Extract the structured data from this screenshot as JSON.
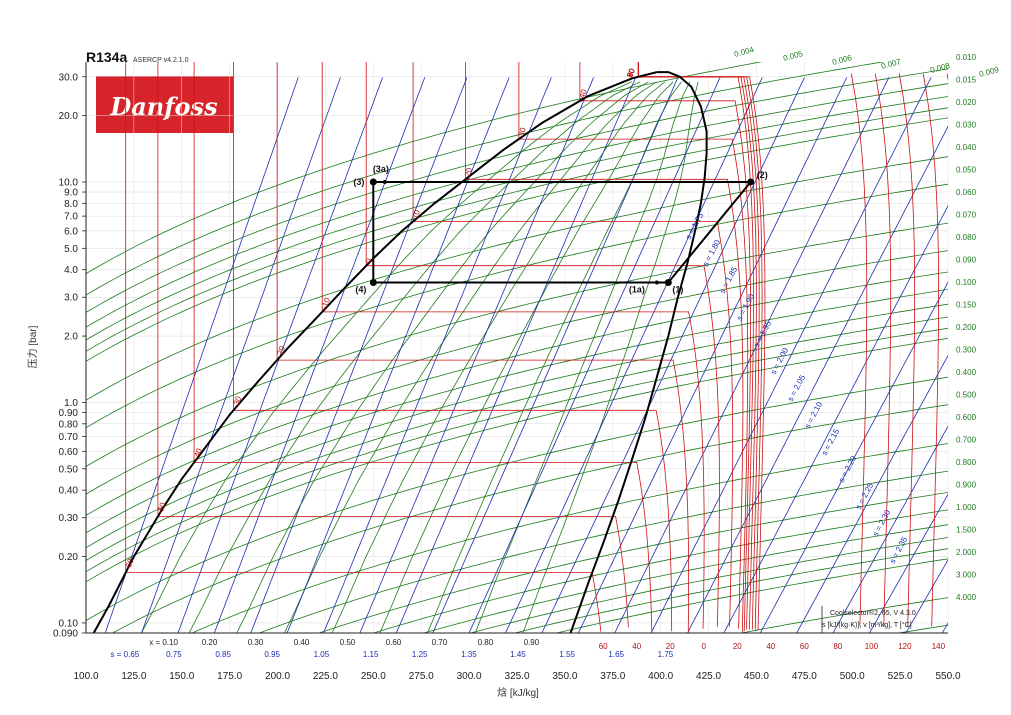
{
  "header": {
    "title": "R134a",
    "subtitle": "ASERCP v4.2.1.0",
    "logo_text": "Danfoss",
    "logo_color": "#d7232a"
  },
  "colors": {
    "isotherm": "#cc1111",
    "isentrope": "#1a2db0",
    "isochore": "#1d7a1d",
    "saturation": "#000000",
    "cycle": "#000000"
  },
  "chart_data": {
    "type": "line",
    "title": "R134a",
    "xlabel": "焓 [kJ/kg]",
    "ylabel": "压力 [bar]",
    "x_scale": "linear",
    "y_scale": "log",
    "xlim": [
      100,
      550
    ],
    "ylim": [
      0.09,
      35
    ],
    "x_ticks": [
      "100.0",
      "125.0",
      "150.0",
      "175.0",
      "200.0",
      "225.0",
      "250.0",
      "275.0",
      "300.0",
      "325.0",
      "350.0",
      "375.0",
      "400.0",
      "425.0",
      "450.0",
      "475.0",
      "500.0",
      "525.0",
      "550.0"
    ],
    "y_ticks": [
      {
        "label": "30.0",
        "value": 30
      },
      {
        "label": "20.0",
        "value": 20
      },
      {
        "label": "10.0",
        "value": 10
      },
      {
        "label": "9.0",
        "value": 9
      },
      {
        "label": "8.0",
        "value": 8
      },
      {
        "label": "7.0",
        "value": 7
      },
      {
        "label": "6.0",
        "value": 6
      },
      {
        "label": "5.0",
        "value": 5
      },
      {
        "label": "4.0",
        "value": 4
      },
      {
        "label": "3.0",
        "value": 3
      },
      {
        "label": "2.0",
        "value": 2
      },
      {
        "label": "1.0",
        "value": 1
      },
      {
        "label": "0.90",
        "value": 0.9
      },
      {
        "label": "0.80",
        "value": 0.8
      },
      {
        "label": "0.70",
        "value": 0.7
      },
      {
        "label": "0.60",
        "value": 0.6
      },
      {
        "label": "0.50",
        "value": 0.5
      },
      {
        "label": "0.40",
        "value": 0.4
      },
      {
        "label": "0.30",
        "value": 0.3
      },
      {
        "label": "0.20",
        "value": 0.2
      },
      {
        "label": "0.10",
        "value": 0.1
      },
      {
        "label": "0.090",
        "value": 0.09
      }
    ],
    "saturation_liquid": [
      [
        104,
        0.09
      ],
      [
        112,
        0.12
      ],
      [
        125,
        0.2
      ],
      [
        140,
        0.33
      ],
      [
        150,
        0.45
      ],
      [
        162,
        0.62
      ],
      [
        175,
        0.88
      ],
      [
        190,
        1.25
      ],
      [
        205,
        1.75
      ],
      [
        220,
        2.4
      ],
      [
        235,
        3.3
      ],
      [
        250,
        4.5
      ],
      [
        265,
        6.0
      ],
      [
        282,
        8.0
      ],
      [
        300,
        10.6
      ],
      [
        318,
        14
      ],
      [
        338,
        18.5
      ],
      [
        362,
        24.5
      ],
      [
        385,
        29.5
      ],
      [
        398,
        31.5
      ]
    ],
    "saturation_vapor": [
      [
        353,
        0.09
      ],
      [
        362,
        0.15
      ],
      [
        370,
        0.23
      ],
      [
        378,
        0.36
      ],
      [
        385,
        0.55
      ],
      [
        392,
        0.85
      ],
      [
        398,
        1.3
      ],
      [
        404,
        2.0
      ],
      [
        409,
        3.0
      ],
      [
        414,
        4.3
      ],
      [
        418,
        6.0
      ],
      [
        421,
        8.0
      ],
      [
        423,
        10.5
      ],
      [
        424,
        13.5
      ],
      [
        424,
        17
      ],
      [
        421,
        22
      ],
      [
        416,
        27
      ],
      [
        410,
        30
      ],
      [
        404,
        31.5
      ],
      [
        398,
        31.5
      ]
    ],
    "quality_labels": [
      "x = 0.10",
      "0.20",
      "0.30",
      "0.40",
      "0.50",
      "0.60",
      "0.70",
      "0.80",
      "0.90"
    ],
    "quality_h": [
      140.5,
      164.5,
      188.5,
      212.5,
      236.5,
      260.5,
      284.5,
      308.5,
      332.5
    ],
    "entropy_labels": [
      "s = 0.65",
      "0.75",
      "0.85",
      "0.95",
      "1.05",
      "1.15",
      "1.25",
      "1.35",
      "1.45",
      "1.55",
      "1.65",
      "1.75"
    ],
    "entropy_h": [
      120.3,
      145.9,
      171.6,
      197.2,
      222.9,
      248.6,
      274.2,
      299.9,
      325.5,
      351.2,
      376.8,
      402.5
    ],
    "entropy_superheat_labels": [
      "s = 1.75",
      "s = 1.80",
      "s = 1.85",
      "s = 1.90",
      "s = 1.95",
      "s = 2.00",
      "s = 2.05",
      "s = 2.10",
      "s = 2.15",
      "s = 2.20",
      "s = 2.25",
      "s = 2.30",
      "s = 2.35"
    ],
    "isotherm_sat_labels": [
      "-60",
      "-50",
      "-40",
      "-30",
      "-20",
      "-10",
      "0",
      "10",
      "20",
      "30",
      "40",
      "50",
      "60",
      "70",
      "80",
      "90"
    ],
    "isotherm_sat_T": [
      -60,
      -50,
      -40,
      -30,
      -20,
      -10,
      0,
      10,
      20,
      30,
      40,
      50,
      60,
      70,
      80,
      90
    ],
    "isotherm_bottom_labels": [
      "60",
      "40",
      "20",
      "0",
      "20",
      "40",
      "60",
      "80",
      "100",
      "120",
      "140"
    ],
    "isochore_labels": [
      "0.004",
      "0.005",
      "0.006",
      "0.007",
      "0.008",
      "0.009",
      "0.010",
      "0.015",
      "0.020",
      "0.030",
      "0.040",
      "0.050",
      "0.060",
      "0.070",
      "0.080",
      "0.090",
      "0.100",
      "0.150",
      "0.200",
      "0.300",
      "0.400",
      "0.500",
      "0.600",
      "0.700",
      "0.800",
      "0.900",
      "1.000",
      "1.500",
      "2.000",
      "3.000",
      "4.000"
    ],
    "isochore_values": [
      0.004,
      0.005,
      0.006,
      0.007,
      0.008,
      0.009,
      0.01,
      0.015,
      0.02,
      0.03,
      0.04,
      0.05,
      0.06,
      0.07,
      0.08,
      0.09,
      0.1,
      0.15,
      0.2,
      0.3,
      0.4,
      0.5,
      0.6,
      0.7,
      0.8,
      0.9,
      1.0,
      1.5,
      2.0,
      3.0,
      4.0
    ],
    "cycle": {
      "name": "",
      "points": [
        {
          "label": "(1)",
          "h": 404,
          "p": 3.5
        },
        {
          "label": "(1a)",
          "h": 398,
          "p": 3.5
        },
        {
          "label": "(2)",
          "h": 447,
          "p": 10.0
        },
        {
          "label": "(3)",
          "h": 250,
          "p": 10.0
        },
        {
          "label": "(3a)",
          "h": 256,
          "p": 10.0
        },
        {
          "label": "(4)",
          "h": 250,
          "p": 3.5
        }
      ],
      "path_order": [
        "(1)",
        "(2)",
        "(3)",
        "(4)",
        "(1)"
      ]
    },
    "footnote_line1": "Coolselector®2, 65, V 4.3.0",
    "footnote_line2": "s [kJ/(kg·K)], v [m³/kg], T [°C]"
  }
}
